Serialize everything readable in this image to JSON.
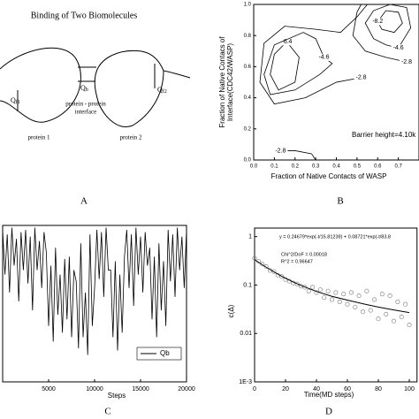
{
  "diagram": {
    "title": "Binding of Two Biomolecules",
    "qf1": {
      "symbol": "Q",
      "sub": "f1"
    },
    "qb": {
      "symbol": "Q",
      "sub": "b"
    },
    "qf2": {
      "symbol": "Q",
      "sub": "f2"
    },
    "interface": [
      "protein - protein",
      "interface"
    ],
    "protein1": "protein 1",
    "protein2": "protein 2",
    "panel": "A"
  },
  "chart_data": [
    {
      "type": "contour",
      "panel": "B",
      "xlabel": "Fraction of Native Contacts of WASP",
      "ylabel": [
        "Fraction of Native Contacs of",
        "Interface(CDC42/WASP)"
      ],
      "annotation": "Barrier height=4.10k",
      "xlim": [
        0,
        0.8
      ],
      "ylim": [
        0,
        1
      ],
      "xticks": [
        {
          "value": 0,
          "label": "0.0"
        },
        0.1,
        0.2,
        0.3,
        0.4,
        0.5,
        0.6,
        0.7
      ],
      "yticks": [
        {
          "value": 0,
          "label": "0.0"
        },
        0.2,
        0.4,
        0.6,
        0.8,
        {
          "value": 1,
          "label": "1.0"
        }
      ],
      "color": "#000000",
      "contours": [
        {
          "level": -6.4,
          "x": [
            0.16,
            0.22,
            0.2,
            0.12,
            0.08,
            0.1,
            0.16
          ],
          "y": [
            0.76,
            0.66,
            0.5,
            0.45,
            0.55,
            0.68,
            0.76
          ]
        },
        {
          "level": -4.6,
          "x": [
            0.34,
            0.3,
            0.24,
            0.1,
            0.05,
            0.08,
            0.2,
            0.32,
            0.38,
            0.34
          ],
          "y": [
            0.66,
            0.78,
            0.82,
            0.74,
            0.55,
            0.42,
            0.45,
            0.55,
            0.62,
            0.66
          ]
        },
        {
          "level": -2.8,
          "x": [
            0.52,
            0.4,
            0.25,
            0.1,
            0.03,
            0.05,
            0.15,
            0.3,
            0.42,
            0.5,
            0.55
          ],
          "y": [
            0.53,
            0.5,
            0.4,
            0.36,
            0.5,
            0.75,
            0.86,
            0.84,
            0.82,
            0.92,
            1.0
          ]
        },
        {
          "level": -8.2,
          "x": [
            0.6,
            0.64,
            0.7,
            0.72,
            0.68,
            0.62,
            0.6
          ],
          "y": [
            0.89,
            0.96,
            0.95,
            0.88,
            0.82,
            0.84,
            0.89
          ]
        },
        {
          "level": -4.6,
          "x": [
            0.7,
            0.76,
            0.74,
            0.66,
            0.58,
            0.54,
            0.58,
            0.64,
            0.7
          ],
          "y": [
            0.72,
            0.85,
            0.98,
            1.0,
            0.96,
            0.88,
            0.78,
            0.74,
            0.72
          ]
        },
        {
          "level": -2.8,
          "x": [
            0.74,
            0.64,
            0.54,
            0.48,
            0.5,
            0.52
          ],
          "y": [
            0.63,
            0.66,
            0.7,
            0.8,
            0.95,
            1.0
          ]
        },
        {
          "level": -2.8,
          "x": [
            0.13,
            0.2,
            0.28,
            0.3
          ],
          "y": [
            0.06,
            0.06,
            0.04,
            0.0
          ]
        }
      ]
    },
    {
      "type": "line",
      "panel": "C",
      "xlabel": "Steps",
      "xlim": [
        0,
        20000
      ],
      "ylim": [
        0.3,
        1.0
      ],
      "xticks": [
        5000,
        10000,
        15000,
        20000
      ],
      "legend": "lower right",
      "x": [
        0,
        250,
        500,
        750,
        1000,
        1250,
        1500,
        1750,
        2000,
        2250,
        2500,
        2750,
        3000,
        3250,
        3500,
        3750,
        4000,
        4250,
        4500,
        4750,
        5000,
        5250,
        5500,
        5750,
        6000,
        6250,
        6500,
        6750,
        7000,
        7250,
        7500,
        7750,
        8000,
        8250,
        8500,
        8750,
        9000,
        9250,
        9500,
        9750,
        10000,
        10250,
        10500,
        10750,
        11000,
        11250,
        11500,
        11750,
        12000,
        12250,
        12500,
        12750,
        13000,
        13250,
        13500,
        13750,
        14000,
        14250,
        14500,
        14750,
        15000,
        15250,
        15500,
        15750,
        16000,
        16250,
        16500,
        16750,
        17000,
        17250,
        17500,
        17750,
        18000,
        18250,
        18500,
        18750,
        19000,
        19250,
        19500,
        19750,
        20000
      ],
      "series": [
        {
          "name": "Qb",
          "color": "#000000",
          "values": [
            0.98,
            0.78,
            0.96,
            0.7,
            0.99,
            0.82,
            0.94,
            0.66,
            0.97,
            0.8,
            0.98,
            0.74,
            0.95,
            0.62,
            0.99,
            0.8,
            0.93,
            0.72,
            0.97,
            0.88,
            0.55,
            0.82,
            0.48,
            0.9,
            0.6,
            0.78,
            0.52,
            0.85,
            0.58,
            0.86,
            0.5,
            0.8,
            0.75,
            0.45,
            0.92,
            0.5,
            0.7,
            0.42,
            0.96,
            0.55,
            0.72,
            0.98,
            0.76,
            0.97,
            0.68,
            0.99,
            0.8,
            0.8,
            0.5,
            0.84,
            0.44,
            0.78,
            0.52,
            0.86,
            0.98,
            0.72,
            0.96,
            0.64,
            0.99,
            0.78,
            0.95,
            0.7,
            0.97,
            0.82,
            0.9,
            0.58,
            0.86,
            0.5,
            0.92,
            0.62,
            0.84,
            0.55,
            0.98,
            0.75,
            0.96,
            0.68,
            0.99,
            0.8,
            0.95,
            0.72,
            0.98
          ]
        }
      ]
    },
    {
      "type": "scatter",
      "panel": "D",
      "xlabel": "Time(MD steps)",
      "ylabel": "c(Δ)",
      "log_y": true,
      "xlim": [
        0,
        105
      ],
      "ylim": [
        0.001,
        1.5
      ],
      "xticks": [
        0,
        20,
        40,
        60,
        80,
        100
      ],
      "yticks": [
        {
          "value": 0.001,
          "label": "1E-3"
        },
        0.01,
        0.1,
        1
      ],
      "color": "#888888",
      "annotations": [
        "y = 0.24679*exp(-t/15.81239) + 0.08721*exp(-t/83.8",
        "Chi^2/DoF   = 0.00018",
        "R^2  = 0.96647"
      ],
      "x": [
        0,
        2.5,
        5,
        7.5,
        10,
        12.5,
        15,
        17.5,
        20,
        22.5,
        25,
        27.5,
        30,
        32.5,
        35,
        37.5,
        40,
        42.5,
        45,
        47.5,
        50,
        52.5,
        55,
        57.5,
        60,
        62.5,
        65,
        67.5,
        70,
        72.5,
        75,
        77.5,
        80,
        82.5,
        85,
        87.5,
        90,
        92.5,
        95,
        97.5,
        100
      ],
      "values": [
        0.36,
        0.31,
        0.27,
        0.24,
        0.2,
        0.19,
        0.16,
        0.15,
        0.13,
        0.12,
        0.11,
        0.105,
        0.095,
        0.09,
        0.075,
        0.09,
        0.07,
        0.08,
        0.055,
        0.075,
        0.05,
        0.07,
        0.045,
        0.065,
        0.04,
        0.07,
        0.035,
        0.06,
        0.028,
        0.075,
        0.03,
        0.05,
        0.02,
        0.065,
        0.025,
        0.06,
        0.018,
        0.045,
        0.022,
        0.04,
        0.015
      ],
      "fit": {
        "x": [
          0,
          5,
          10,
          15,
          20,
          25,
          30,
          40,
          50,
          60,
          70,
          80,
          90,
          100
        ],
        "values": [
          0.334,
          0.262,
          0.208,
          0.168,
          0.138,
          0.115,
          0.098,
          0.0737,
          0.0584,
          0.0488,
          0.041,
          0.035,
          0.0306,
          0.027
        ]
      }
    }
  ]
}
